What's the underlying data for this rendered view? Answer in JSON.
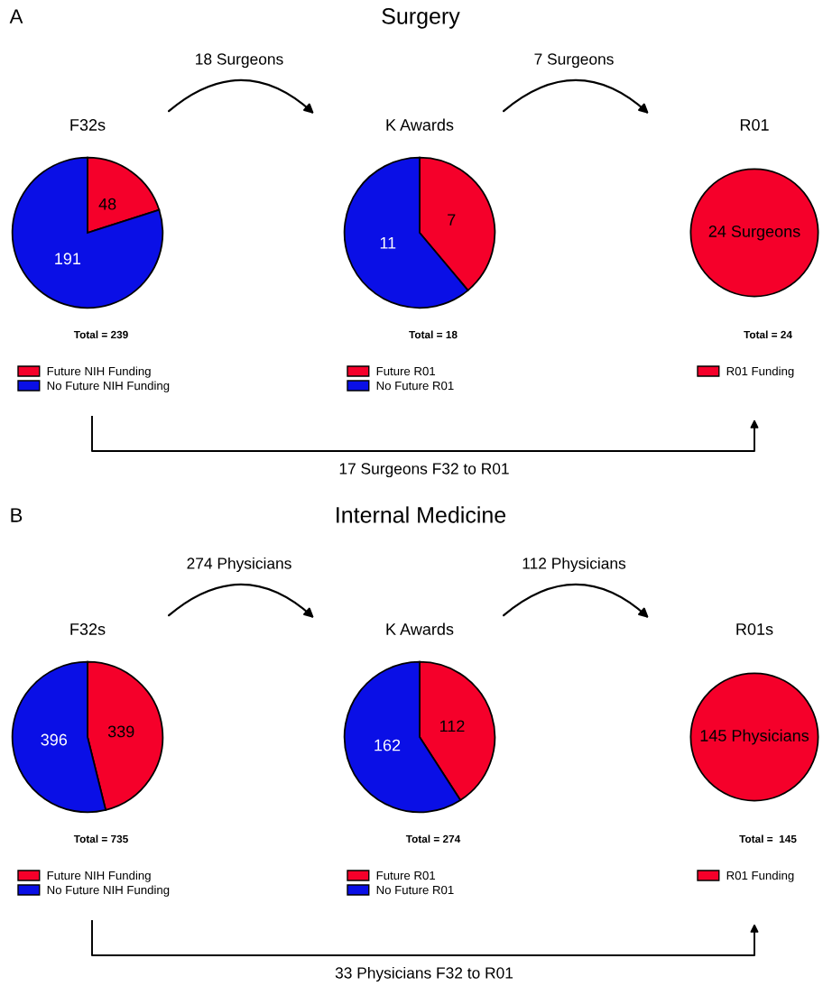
{
  "chart_data": [
    {
      "type": "pie",
      "title": "F32s",
      "categories": [
        "Future NIH Funding",
        "No Future NIH Funding"
      ],
      "values": [
        48,
        191
      ],
      "colors": [
        "#f5002a",
        "#0a0fe6"
      ],
      "data_labels": true,
      "legend": "bottom",
      "annotations": [
        "Total = 239",
        "A",
        "Surgery",
        "18 Surgeons",
        "17 Surgeons F32 to R01"
      ]
    },
    {
      "type": "pie",
      "title": "K Awards",
      "categories": [
        "Future R01",
        "No Future R01"
      ],
      "values": [
        7,
        11
      ],
      "colors": [
        "#f5002a",
        "#0a0fe6"
      ],
      "data_labels": true,
      "legend": "bottom",
      "annotations": [
        "Total = 18",
        "7 Surgeons"
      ]
    },
    {
      "type": "pie",
      "title": "R01",
      "categories": [
        "R01 Funding"
      ],
      "values": [
        24
      ],
      "colors": [
        "#f5002a"
      ],
      "value_labels": [
        "24 Surgeons"
      ],
      "legend": "bottom",
      "annotations": [
        "Total = 24"
      ]
    },
    {
      "type": "pie",
      "title": "F32s",
      "categories": [
        "Future NIH Funding",
        "No Future NIH Funding"
      ],
      "values": [
        339,
        396
      ],
      "colors": [
        "#f5002a",
        "#0a0fe6"
      ],
      "data_labels": true,
      "legend": "bottom",
      "annotations": [
        "Total = 735",
        "B",
        "Internal Medicine",
        "274 Physicians",
        "33 Physicians F32 to R01"
      ]
    },
    {
      "type": "pie",
      "title": "K Awards",
      "categories": [
        "Future R01",
        "No Future R01"
      ],
      "values": [
        112,
        162
      ],
      "colors": [
        "#f5002a",
        "#0a0fe6"
      ],
      "data_labels": true,
      "legend": "bottom",
      "annotations": [
        "Total = 274",
        "112 Physicians"
      ]
    },
    {
      "type": "pie",
      "title": "R01s",
      "categories": [
        "R01 Funding"
      ],
      "values": [
        145
      ],
      "colors": [
        "#f5002a"
      ],
      "value_labels": [
        "145 Physicians"
      ],
      "legend": "bottom",
      "annotations": [
        "Total =  145"
      ]
    }
  ]
}
